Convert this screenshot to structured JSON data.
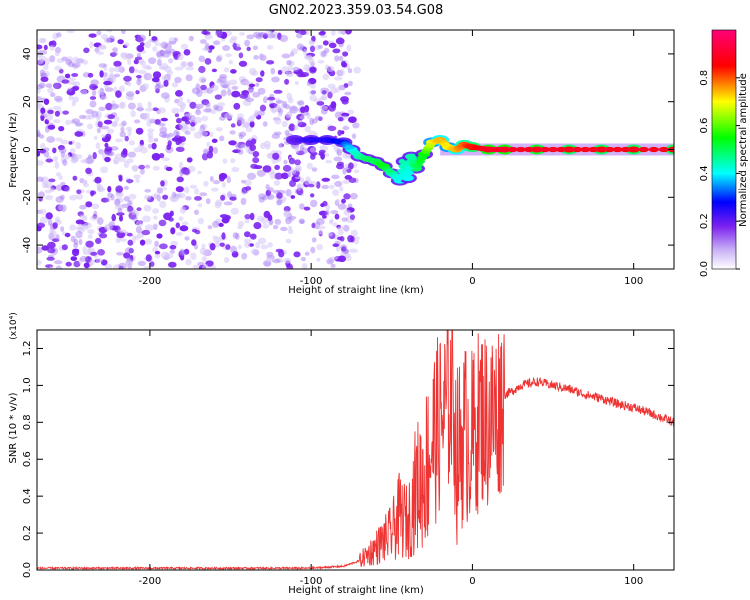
{
  "figure_title": "GN02.2023.359.03.54.G08",
  "chart_data": [
    {
      "type": "heatmap",
      "title": "GN02.2023.359.03.54.G08",
      "xlabel": "Height of straight line (km)",
      "ylabel": "Frequency (Hz)",
      "xlim": [
        -270,
        125
      ],
      "ylim": [
        -50,
        50
      ],
      "x_ticks": [
        -200,
        -100,
        0,
        100
      ],
      "x_tick_labels": [
        "-200",
        "-100",
        "0",
        "100"
      ],
      "y_ticks": [
        -40,
        -20,
        0,
        20,
        40
      ],
      "y_tick_labels": [
        "-40",
        "-20",
        "0",
        "20",
        "40"
      ],
      "noise_region_x": [
        -270,
        -75
      ],
      "signal_track": {
        "x": [
          -110,
          -100,
          -90,
          -80,
          -75,
          -70,
          -65,
          -60,
          -55,
          -50,
          -45,
          -42,
          -40,
          -38,
          -35,
          -30,
          -25,
          -20,
          -15,
          -10,
          -5,
          0,
          10,
          20,
          40,
          60,
          80,
          100,
          125
        ],
        "freq": [
          4,
          4,
          4,
          3,
          0,
          -3,
          -4,
          -5,
          -7,
          -10,
          -13,
          -5,
          -12,
          -3,
          -8,
          -2,
          3,
          4,
          1,
          0,
          2,
          1,
          0,
          0,
          0,
          0,
          0,
          0,
          0
        ],
        "amplitude": [
          0.2,
          0.25,
          0.25,
          0.3,
          0.4,
          0.45,
          0.5,
          0.5,
          0.55,
          0.45,
          0.4,
          0.45,
          0.4,
          0.45,
          0.5,
          0.55,
          0.7,
          0.75,
          0.7,
          0.75,
          0.8,
          0.85,
          0.9,
          0.9,
          0.88,
          0.85,
          0.85,
          0.85,
          0.85
        ]
      },
      "colorbar": {
        "label": "Normalized spectral amplitude",
        "range": [
          0,
          1
        ],
        "ticks": [
          0.0,
          0.2,
          0.4,
          0.6,
          0.8
        ],
        "tick_labels": [
          "0.0",
          "0.2",
          "0.4",
          "0.6",
          "0.8"
        ],
        "colors": [
          "#ffffff",
          "#c9b0f5",
          "#7a20f0",
          "#0000ff",
          "#00ffff",
          "#00ff00",
          "#ffff00",
          "#ff0000",
          "#ff0077"
        ]
      }
    },
    {
      "type": "line",
      "xlabel": "Height of straight line (km)",
      "ylabel": "SNR (10 * v/v)",
      "y_multiplier": "(x10⁴)",
      "xlim": [
        -270,
        125
      ],
      "ylim": [
        0,
        1.3
      ],
      "x_ticks": [
        -200,
        -100,
        0,
        100
      ],
      "x_tick_labels": [
        "-200",
        "-100",
        "0",
        "100"
      ],
      "y_ticks": [
        0.0,
        0.2,
        0.4,
        0.6,
        0.8,
        1.0,
        1.2
      ],
      "y_tick_labels": [
        "0.0",
        "0.2",
        "0.4",
        "0.6",
        "0.8",
        "1.0",
        "1.2"
      ],
      "line_color": "#ee3333",
      "series": [
        {
          "name": "SNR",
          "x": [
            -270,
            -200,
            -150,
            -100,
            -80,
            -70,
            -60,
            -50,
            -45,
            -40,
            -35,
            -30,
            -25,
            -20,
            -15,
            -12,
            -10,
            -5,
            0,
            5,
            10,
            15,
            20,
            25,
            30,
            40,
            50,
            60,
            70,
            80,
            90,
            100,
            110,
            125
          ],
          "y": [
            0.01,
            0.01,
            0.01,
            0.01,
            0.02,
            0.05,
            0.12,
            0.2,
            0.3,
            0.25,
            0.45,
            0.5,
            0.7,
            0.8,
            0.9,
            1.0,
            0.6,
            0.75,
            0.7,
            0.85,
            0.8,
            0.85,
            0.95,
            0.97,
            1.0,
            1.02,
            1.0,
            0.98,
            0.95,
            0.93,
            0.9,
            0.88,
            0.85,
            0.8
          ]
        }
      ]
    }
  ]
}
